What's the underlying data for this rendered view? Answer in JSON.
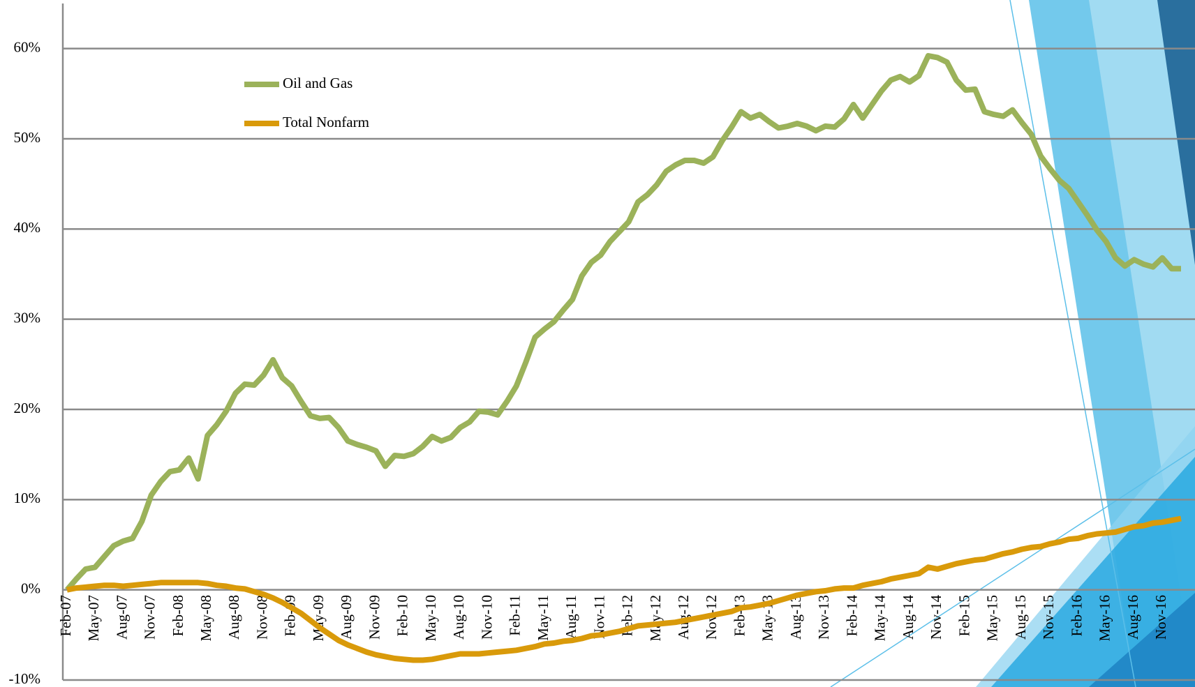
{
  "chart_data": {
    "type": "line",
    "categories": [
      "Feb-07",
      null,
      null,
      "May-07",
      null,
      null,
      "Aug-07",
      null,
      null,
      "Nov-07",
      null,
      null,
      "Feb-08",
      null,
      null,
      "May-08",
      null,
      null,
      "Aug-08",
      null,
      null,
      "Nov-08",
      null,
      null,
      "Feb-09",
      null,
      null,
      "May-09",
      null,
      null,
      "Aug-09",
      null,
      null,
      "Nov-09",
      null,
      null,
      "Feb-10",
      null,
      null,
      "May-10",
      null,
      null,
      "Aug-10",
      null,
      null,
      "Nov-10",
      null,
      null,
      "Feb-11",
      null,
      null,
      "May-11",
      null,
      null,
      "Aug-11",
      null,
      null,
      "Nov-11",
      null,
      null,
      "Feb-12",
      null,
      null,
      "May-12",
      null,
      null,
      "Aug-12",
      null,
      null,
      "Nov-12",
      null,
      null,
      "Feb-13",
      null,
      null,
      "May-13",
      null,
      null,
      "Aug-13",
      null,
      null,
      "Nov-13",
      null,
      null,
      "Feb-14",
      null,
      null,
      "May-14",
      null,
      null,
      "Aug-14",
      null,
      null,
      "Nov-14",
      null,
      null,
      "Feb-15",
      null,
      null,
      "May-15",
      null,
      null,
      "Aug-15",
      null,
      null,
      "Nov-15",
      null,
      null,
      "Feb-16",
      null,
      null,
      "May-16",
      null,
      null,
      "Aug-16",
      null,
      null,
      "Nov-16",
      null,
      null
    ],
    "series": [
      {
        "name": "Oil and Gas",
        "color": "#9bb25a",
        "values": [
          0,
          1.2,
          2.3,
          2.5,
          3.7,
          4.9,
          5.4,
          5.7,
          7.6,
          10.5,
          12,
          13.1,
          13.3,
          14.6,
          12.3,
          17.1,
          18.3,
          19.8,
          21.8,
          22.8,
          22.7,
          23.8,
          25.5,
          23.5,
          22.6,
          20.9,
          19.3,
          19,
          19.1,
          18,
          16.5,
          16.1,
          15.8,
          15.4,
          13.7,
          14.9,
          14.8,
          15.1,
          15.9,
          17,
          16.5,
          16.9,
          18,
          18.6,
          19.8,
          19.7,
          19.4,
          20.9,
          22.6,
          25.2,
          28,
          28.9,
          29.7,
          31,
          32.2,
          34.8,
          36.3,
          37.1,
          38.6,
          39.7,
          40.8,
          43,
          43.8,
          44.9,
          46.4,
          47.1,
          47.6,
          47.6,
          47.3,
          48,
          49.8,
          51.3,
          53,
          52.3,
          52.7,
          51.9,
          51.2,
          51.4,
          51.7,
          51.4,
          50.9,
          51.4,
          51.3,
          52.2,
          53.8,
          52.3,
          53.8,
          55.3,
          56.5,
          56.9,
          56.3,
          57,
          59.2,
          59,
          58.5,
          56.5,
          55.4,
          55.5,
          53,
          52.7,
          52.5,
          53.2,
          51.8,
          50.5,
          48.1,
          46.7,
          45.4,
          44.5,
          43,
          41.5,
          39.9,
          38.6,
          36.8,
          35.9,
          36.6,
          36.1,
          35.8,
          36.8,
          35.6,
          35.6
        ]
      },
      {
        "name": "Total Nonfarm",
        "color": "#d99a0a",
        "values": [
          0,
          0.2,
          0.3,
          0.4,
          0.5,
          0.5,
          0.4,
          0.5,
          0.6,
          0.7,
          0.8,
          0.8,
          0.8,
          0.8,
          0.8,
          0.7,
          0.5,
          0.4,
          0.2,
          0.1,
          -0.2,
          -0.5,
          -0.9,
          -1.4,
          -2,
          -2.6,
          -3.4,
          -4.2,
          -4.9,
          -5.6,
          -6.1,
          -6.5,
          -6.9,
          -7.2,
          -7.4,
          -7.6,
          -7.7,
          -7.8,
          -7.8,
          -7.7,
          -7.5,
          -7.3,
          -7.1,
          -7.1,
          -7.1,
          -7,
          -6.9,
          -6.8,
          -6.7,
          -6.5,
          -6.3,
          -6,
          -5.9,
          -5.7,
          -5.6,
          -5.4,
          -5.1,
          -5,
          -4.8,
          -4.6,
          -4.3,
          -4,
          -3.9,
          -3.8,
          -3.7,
          -3.6,
          -3.4,
          -3.2,
          -3,
          -2.8,
          -2.6,
          -2.4,
          -2,
          -1.9,
          -1.7,
          -1.5,
          -1.2,
          -0.9,
          -0.6,
          -0.4,
          -0.2,
          -0.1,
          0.1,
          0.2,
          0.2,
          0.5,
          0.7,
          0.9,
          1.2,
          1.4,
          1.6,
          1.8,
          2.5,
          2.3,
          2.6,
          2.9,
          3.1,
          3.3,
          3.4,
          3.7,
          4,
          4.2,
          4.5,
          4.7,
          4.8,
          5.1,
          5.3,
          5.6,
          5.7,
          6,
          6.2,
          6.3,
          6.4,
          6.7,
          7,
          7.1,
          7.4,
          7.5,
          7.7,
          7.9
        ]
      }
    ],
    "ylim": [
      -10,
      65
    ],
    "yticks": [
      {
        "value": -10,
        "label": "-10%"
      },
      {
        "value": 0,
        "label": "0%"
      },
      {
        "value": 10,
        "label": "10%"
      },
      {
        "value": 20,
        "label": "20%"
      },
      {
        "value": 30,
        "label": "30%"
      },
      {
        "value": 40,
        "label": "40%"
      },
      {
        "value": 50,
        "label": "50%"
      },
      {
        "value": 60,
        "label": "60%"
      }
    ],
    "grid": true,
    "legend": "upper left"
  }
}
